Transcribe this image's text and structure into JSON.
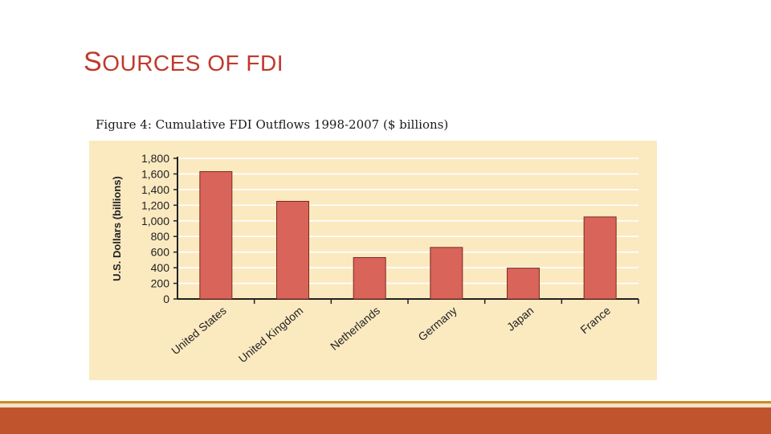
{
  "slide": {
    "title_first": "S",
    "title_rest": "OURCES OF FDI",
    "caption": "Figure 4: Cumulative FDI Outflows 1998-2007 ($ billions)"
  },
  "colors": {
    "bar": "#d9645a",
    "bar_stroke": "#7a2a22",
    "panel": "#fbe9c0",
    "grid": "#ffffff",
    "axis": "#222222"
  },
  "chart_data": {
    "type": "bar",
    "title": "Cumulative FDI Outflows 1998-2007 ($ billions)",
    "xlabel": "",
    "ylabel": "U.S. Dollars (billions)",
    "ylim": [
      0,
      1800
    ],
    "yticks": [
      0,
      200,
      400,
      600,
      800,
      1000,
      1200,
      1400,
      1600,
      1800
    ],
    "ytick_labels": [
      "0",
      "200",
      "400",
      "600",
      "800",
      "1,000",
      "1,200",
      "1,400",
      "1,600",
      "1,800"
    ],
    "categories": [
      "United States",
      "United Kingdom",
      "Netherlands",
      "Germany",
      "Japan",
      "France"
    ],
    "values": [
      1630,
      1250,
      530,
      660,
      395,
      1050
    ],
    "grid": true
  }
}
